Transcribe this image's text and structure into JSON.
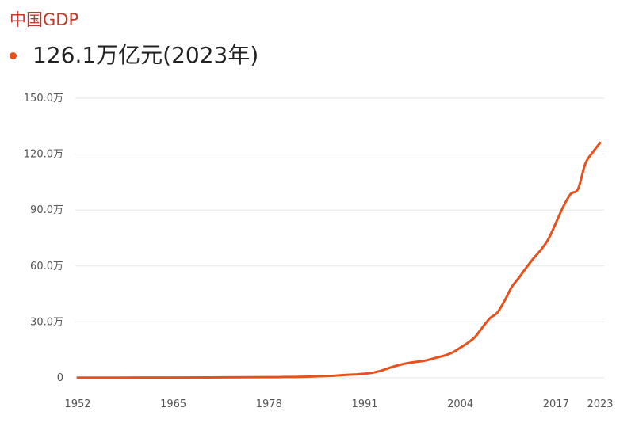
{
  "header": {
    "title": "中国GDP",
    "highlight_value": "126.1万亿元(2023年)"
  },
  "colors": {
    "title": "#c0392b",
    "line": "#e8501c",
    "grid": "#e6e6e6",
    "tick_text": "#555555"
  },
  "chart_data": {
    "type": "line",
    "title": "中国GDP",
    "xlabel": "",
    "ylabel": "",
    "unit": "万亿元",
    "xlim": [
      1952,
      2023
    ],
    "ylim": [
      0,
      150
    ],
    "grid": true,
    "x_ticks": [
      {
        "value": 1952,
        "label": "1952"
      },
      {
        "value": 1965,
        "label": "1965"
      },
      {
        "value": 1978,
        "label": "1978"
      },
      {
        "value": 1991,
        "label": "1991"
      },
      {
        "value": 2004,
        "label": "2004"
      },
      {
        "value": 2017,
        "label": "2017"
      },
      {
        "value": 2023,
        "label": "2023"
      }
    ],
    "y_ticks": [
      {
        "value": 0,
        "label": "0"
      },
      {
        "value": 30,
        "label": "30.0万"
      },
      {
        "value": 60,
        "label": "60.0万"
      },
      {
        "value": 90,
        "label": "90.0万"
      },
      {
        "value": 120,
        "label": "120.0万"
      },
      {
        "value": 150,
        "label": "150.0万"
      }
    ],
    "series": [
      {
        "x": [
          1952,
          1955,
          1960,
          1965,
          1970,
          1975,
          1978,
          1980,
          1982,
          1985,
          1987,
          1989,
          1990,
          1991,
          1992,
          1993,
          1994,
          1995,
          1996,
          1997,
          1998,
          1999,
          2000,
          2001,
          2002,
          2003,
          2004,
          2005,
          2006,
          2007,
          2008,
          2009,
          2010,
          2011,
          2012,
          2013,
          2014,
          2015,
          2016,
          2017,
          2018,
          2019,
          2020,
          2021,
          2022,
          2023
        ],
        "values": [
          0.07,
          0.09,
          0.15,
          0.17,
          0.23,
          0.3,
          0.37,
          0.46,
          0.54,
          0.91,
          1.21,
          1.71,
          1.89,
          2.22,
          2.72,
          3.57,
          4.86,
          6.13,
          7.18,
          7.97,
          8.52,
          9.06,
          10.03,
          11.09,
          12.17,
          13.74,
          16.18,
          18.73,
          21.94,
          27.01,
          31.92,
          34.85,
          41.21,
          48.79,
          53.86,
          59.3,
          64.36,
          68.89,
          74.64,
          83.2,
          91.93,
          98.65,
          101.36,
          114.92,
          121.02,
          126.06
        ]
      }
    ]
  }
}
